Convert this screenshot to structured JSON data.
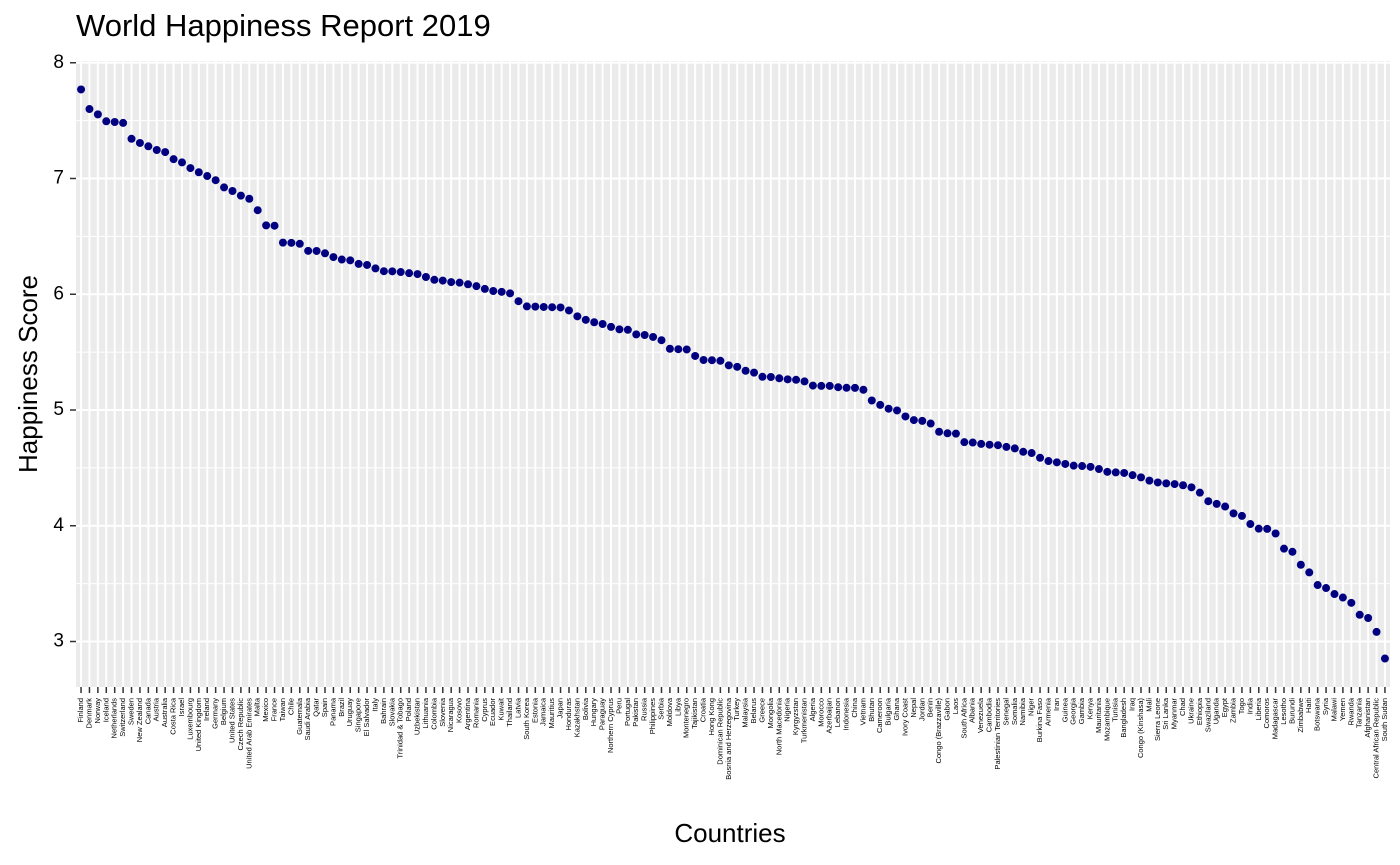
{
  "chart_data": {
    "type": "scatter",
    "title": "World Happiness Report 2019",
    "x_label": "Countries",
    "y_label": "Happiness Score",
    "color": "#000080",
    "grid": true,
    "categories": [
      "Finland",
      "Denmark",
      "Norway",
      "Iceland",
      "Netherlands",
      "Switzerland",
      "Sweden",
      "New Zealand",
      "Canada",
      "Austria",
      "Australia",
      "Costa Rica",
      "Israel",
      "Luxembourg",
      "United Kingdom",
      "Ireland",
      "Germany",
      "Belgium",
      "United States",
      "Czech Republic",
      "United Arab Emirates",
      "Malta",
      "Mexico",
      "France",
      "Taiwan",
      "Chile",
      "Guatemala",
      "Saudi Arabia",
      "Qatar",
      "Spain",
      "Panama",
      "Brazil",
      "Uruguay",
      "Singapore",
      "El Salvador",
      "Italy",
      "Bahrain",
      "Slovakia",
      "Trinidad & Tobago",
      "Poland",
      "Uzbekistan",
      "Lithuania",
      "Colombia",
      "Slovenia",
      "Nicaragua",
      "Kosovo",
      "Argentina",
      "Romania",
      "Cyprus",
      "Ecuador",
      "Kuwait",
      "Thailand",
      "Latvia",
      "South Korea",
      "Estonia",
      "Jamaica",
      "Mauritius",
      "Japan",
      "Honduras",
      "Kazakhstan",
      "Bolivia",
      "Hungary",
      "Paraguay",
      "Northern Cyprus",
      "Peru",
      "Portugal",
      "Pakistan",
      "Russia",
      "Philippines",
      "Serbia",
      "Moldova",
      "Libya",
      "Montenegro",
      "Tajikistan",
      "Croatia",
      "Hong Kong",
      "Dominican Republic",
      "Bosnia and Herzegovina",
      "Turkey",
      "Malaysia",
      "Belarus",
      "Greece",
      "Mongolia",
      "North Macedonia",
      "Nigeria",
      "Kyrgyzstan",
      "Turkmenistan",
      "Algeria",
      "Morocco",
      "Azerbaijan",
      "Lebanon",
      "Indonesia",
      "China",
      "Vietnam",
      "Bhutan",
      "Cameroon",
      "Bulgaria",
      "Ghana",
      "Ivory Coast",
      "Nepal",
      "Jordan",
      "Benin",
      "Congo (Brazzaville)",
      "Gabon",
      "Laos",
      "South Africa",
      "Albania",
      "Venezuela",
      "Cambodia",
      "Palestinian Territories",
      "Senegal",
      "Somalia",
      "Namibia",
      "Niger",
      "Burkina Faso",
      "Armenia",
      "Iran",
      "Guinea",
      "Georgia",
      "Gambia",
      "Kenya",
      "Mauritania",
      "Mozambique",
      "Tunisia",
      "Bangladesh",
      "Iraq",
      "Congo (Kinshasa)",
      "Mali",
      "Sierra Leone",
      "Sri Lanka",
      "Myanmar",
      "Chad",
      "Ukraine",
      "Ethiopia",
      "Swaziland",
      "Uganda",
      "Egypt",
      "Zambia",
      "Togo",
      "India",
      "Liberia",
      "Comoros",
      "Madagascar",
      "Lesotho",
      "Burundi",
      "Zimbabwe",
      "Haiti",
      "Botswana",
      "Syria",
      "Malawi",
      "Yemen",
      "Rwanda",
      "Tanzania",
      "Afghanistan",
      "Central African Republic",
      "South Sudan"
    ],
    "values": [
      7.769,
      7.6,
      7.554,
      7.494,
      7.488,
      7.48,
      7.343,
      7.307,
      7.278,
      7.246,
      7.228,
      7.167,
      7.139,
      7.09,
      7.054,
      7.021,
      6.985,
      6.923,
      6.892,
      6.852,
      6.825,
      6.726,
      6.595,
      6.592,
      6.446,
      6.444,
      6.436,
      6.375,
      6.374,
      6.354,
      6.321,
      6.3,
      6.293,
      6.262,
      6.253,
      6.223,
      6.199,
      6.198,
      6.192,
      6.182,
      6.174,
      6.149,
      6.125,
      6.118,
      6.105,
      6.1,
      6.086,
      6.07,
      6.046,
      6.028,
      6.021,
      6.008,
      5.94,
      5.895,
      5.893,
      5.89,
      5.888,
      5.886,
      5.86,
      5.809,
      5.779,
      5.758,
      5.743,
      5.718,
      5.697,
      5.693,
      5.653,
      5.648,
      5.631,
      5.603,
      5.529,
      5.525,
      5.523,
      5.467,
      5.432,
      5.43,
      5.425,
      5.386,
      5.373,
      5.339,
      5.323,
      5.287,
      5.285,
      5.274,
      5.265,
      5.261,
      5.247,
      5.211,
      5.208,
      5.208,
      5.197,
      5.192,
      5.191,
      5.175,
      5.082,
      5.044,
      5.011,
      4.996,
      4.944,
      4.913,
      4.906,
      4.883,
      4.812,
      4.799,
      4.796,
      4.722,
      4.719,
      4.707,
      4.7,
      4.696,
      4.681,
      4.668,
      4.639,
      4.628,
      4.587,
      4.559,
      4.548,
      4.534,
      4.519,
      4.516,
      4.509,
      4.49,
      4.466,
      4.461,
      4.456,
      4.437,
      4.418,
      4.39,
      4.374,
      4.366,
      4.36,
      4.35,
      4.332,
      4.286,
      4.212,
      4.189,
      4.166,
      4.107,
      4.085,
      4.015,
      3.975,
      3.973,
      3.933,
      3.802,
      3.775,
      3.663,
      3.597,
      3.488,
      3.462,
      3.41,
      3.38,
      3.334,
      3.231,
      3.203,
      3.083,
      2.853
    ],
    "ylim": [
      2.607,
      8.015
    ],
    "yticks": [
      3,
      4,
      5,
      6,
      7,
      8
    ]
  }
}
